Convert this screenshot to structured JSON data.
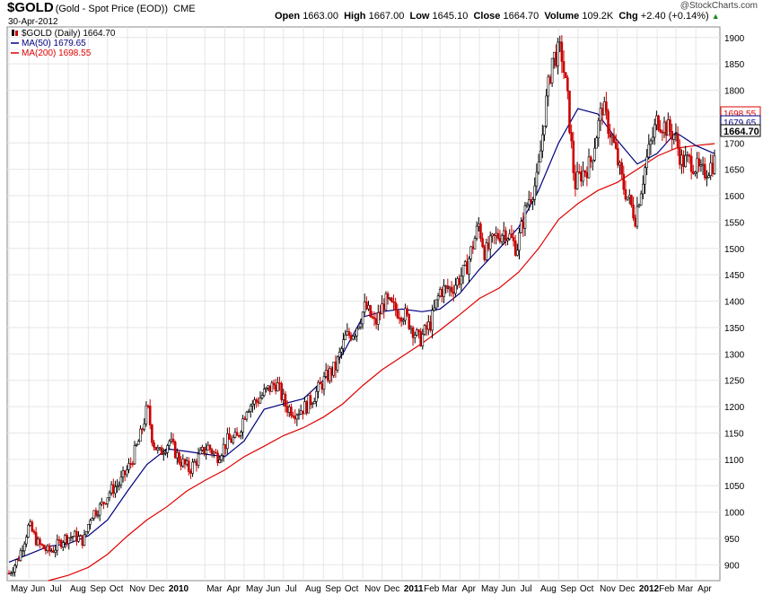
{
  "header": {
    "symbol": "$GOLD",
    "description": "(Gold - Spot Price (EOD))",
    "exchange": "CME",
    "date": "30-Apr-2012",
    "watermark": "@StockCharts.com",
    "quote": {
      "open_label": "Open",
      "open": "1663.00",
      "high_label": "High",
      "high": "1667.00",
      "low_label": "Low",
      "low": "1645.10",
      "close_label": "Close",
      "close": "1664.70",
      "volume_label": "Volume",
      "volume": "109.2K",
      "chg_label": "Chg",
      "chg": "+2.40 (+0.14%)",
      "chg_icon": "up-triangle-icon"
    }
  },
  "legend": [
    {
      "label": "$GOLD (Daily) 1664.70",
      "color": "#000000",
      "icon": "candle-icon"
    },
    {
      "label": "MA(50) 1679.65",
      "color": "#000080"
    },
    {
      "label": "MA(200) 1698.55",
      "color": "#e00000"
    }
  ],
  "price_tags": [
    {
      "label": "1698.55",
      "value": 1698.55,
      "color": "#e00000"
    },
    {
      "label": "1679.65",
      "value": 1679.65,
      "color": "#000080"
    },
    {
      "label": "1664.70",
      "value": 1664.7,
      "color": "#000000"
    }
  ],
  "chart_data": {
    "type": "line",
    "title": "$GOLD (Gold - Spot Price (EOD)) CME",
    "ylim": [
      870,
      1920
    ],
    "y_ticks": [
      900,
      950,
      1000,
      1050,
      1100,
      1150,
      1200,
      1250,
      1300,
      1350,
      1400,
      1450,
      1500,
      1550,
      1600,
      1650,
      1700,
      1750,
      1800,
      1850,
      1900
    ],
    "month_labels": [
      {
        "label": "May",
        "month": "2009-05",
        "bold": false
      },
      {
        "label": "Jun",
        "month": "2009-06",
        "bold": false
      },
      {
        "label": "Jul",
        "month": "2009-07",
        "bold": false
      },
      {
        "label": "Aug",
        "month": "2009-08",
        "bold": false
      },
      {
        "label": "Sep",
        "month": "2009-09",
        "bold": false
      },
      {
        "label": "Oct",
        "month": "2009-10",
        "bold": false
      },
      {
        "label": "Nov",
        "month": "2009-11",
        "bold": false
      },
      {
        "label": "Dec",
        "month": "2009-12",
        "bold": false
      },
      {
        "label": "2010",
        "month": "2010-01",
        "bold": true
      },
      {
        "label": "Mar",
        "month": "2010-03",
        "bold": false
      },
      {
        "label": "Apr",
        "month": "2010-04",
        "bold": false
      },
      {
        "label": "May",
        "month": "2010-05",
        "bold": false
      },
      {
        "label": "Jun",
        "month": "2010-06",
        "bold": false
      },
      {
        "label": "Jul",
        "month": "2010-07",
        "bold": false
      },
      {
        "label": "Aug",
        "month": "2010-08",
        "bold": false
      },
      {
        "label": "Sep",
        "month": "2010-09",
        "bold": false
      },
      {
        "label": "Oct",
        "month": "2010-10",
        "bold": false
      },
      {
        "label": "Nov",
        "month": "2010-11",
        "bold": false
      },
      {
        "label": "Dec",
        "month": "2010-12",
        "bold": false
      },
      {
        "label": "2011",
        "month": "2011-01",
        "bold": true
      },
      {
        "label": "Feb",
        "month": "2011-02",
        "bold": false
      },
      {
        "label": "Mar",
        "month": "2011-03",
        "bold": false
      },
      {
        "label": "Apr",
        "month": "2011-04",
        "bold": false
      },
      {
        "label": "May",
        "month": "2011-05",
        "bold": false
      },
      {
        "label": "Jun",
        "month": "2011-06",
        "bold": false
      },
      {
        "label": "Jul",
        "month": "2011-07",
        "bold": false
      },
      {
        "label": "Aug",
        "month": "2011-08",
        "bold": false
      },
      {
        "label": "Sep",
        "month": "2011-09",
        "bold": false
      },
      {
        "label": "Oct",
        "month": "2011-10",
        "bold": false
      },
      {
        "label": "Nov",
        "month": "2011-11",
        "bold": false
      },
      {
        "label": "Dec",
        "month": "2011-12",
        "bold": false
      },
      {
        "label": "2012",
        "month": "2012-01",
        "bold": true
      },
      {
        "label": "Feb",
        "month": "2012-02",
        "bold": false
      },
      {
        "label": "Mar",
        "month": "2012-03",
        "bold": false
      },
      {
        "label": "Apr",
        "month": "2012-04",
        "bold": false
      }
    ],
    "grid": true,
    "legend_position": "top-left",
    "series": [
      {
        "name": "$GOLD (Daily)",
        "color": "#000000",
        "style": "candlestick",
        "x": [
          "2009-05-01",
          "2009-05-15",
          "2009-06-01",
          "2009-06-15",
          "2009-07-01",
          "2009-07-10",
          "2009-07-25",
          "2009-08-10",
          "2009-08-25",
          "2009-09-05",
          "2009-09-20",
          "2009-10-05",
          "2009-10-20",
          "2009-11-05",
          "2009-11-20",
          "2009-12-02",
          "2009-12-10",
          "2009-12-20",
          "2010-01-05",
          "2010-01-20",
          "2010-02-05",
          "2010-02-20",
          "2010-03-05",
          "2010-03-20",
          "2010-04-05",
          "2010-04-20",
          "2010-05-05",
          "2010-05-20",
          "2010-06-05",
          "2010-06-20",
          "2010-07-05",
          "2010-07-20",
          "2010-08-05",
          "2010-08-20",
          "2010-09-05",
          "2010-09-20",
          "2010-10-05",
          "2010-10-20",
          "2010-11-05",
          "2010-11-20",
          "2010-12-05",
          "2010-12-20",
          "2011-01-05",
          "2011-01-28",
          "2011-02-15",
          "2011-03-01",
          "2011-03-20",
          "2011-04-10",
          "2011-04-30",
          "2011-05-10",
          "2011-05-25",
          "2011-06-10",
          "2011-06-28",
          "2011-07-15",
          "2011-07-30",
          "2011-08-10",
          "2011-08-22",
          "2011-09-05",
          "2011-09-15",
          "2011-09-26",
          "2011-10-05",
          "2011-10-20",
          "2011-11-08",
          "2011-11-25",
          "2011-12-10",
          "2011-12-29",
          "2012-01-15",
          "2012-02-01",
          "2012-02-28",
          "2012-03-10",
          "2012-03-25",
          "2012-04-10",
          "2012-04-30"
        ],
        "values": [
          884,
          910,
          975,
          940,
          925,
          930,
          950,
          955,
          945,
          995,
          1010,
          1040,
          1055,
          1090,
          1140,
          1200,
          1135,
          1110,
          1135,
          1100,
          1080,
          1105,
          1125,
          1105,
          1135,
          1140,
          1200,
          1210,
          1230,
          1245,
          1200,
          1190,
          1200,
          1225,
          1255,
          1275,
          1330,
          1345,
          1390,
          1355,
          1400,
          1385,
          1375,
          1325,
          1360,
          1420,
          1425,
          1460,
          1545,
          1490,
          1520,
          1535,
          1500,
          1590,
          1630,
          1750,
          1860,
          1875,
          1780,
          1620,
          1640,
          1660,
          1770,
          1700,
          1620,
          1560,
          1665,
          1745,
          1715,
          1665,
          1665,
          1640,
          1664.7
        ]
      },
      {
        "name": "MA(50)",
        "color": "#000080",
        "style": "line",
        "x": [
          "2009-05-01",
          "2009-06-01",
          "2009-07-01",
          "2009-08-01",
          "2009-09-01",
          "2009-10-01",
          "2009-11-01",
          "2009-12-01",
          "2010-01-01",
          "2010-02-01",
          "2010-03-01",
          "2010-04-01",
          "2010-05-01",
          "2010-06-01",
          "2010-07-01",
          "2010-08-01",
          "2010-09-01",
          "2010-10-01",
          "2010-11-01",
          "2010-12-01",
          "2011-01-01",
          "2011-02-01",
          "2011-03-01",
          "2011-04-01",
          "2011-05-01",
          "2011-06-01",
          "2011-07-01",
          "2011-08-01",
          "2011-09-01",
          "2011-10-01",
          "2011-11-01",
          "2011-12-01",
          "2012-01-01",
          "2012-02-01",
          "2012-03-01",
          "2012-04-01",
          "2012-04-30"
        ],
        "values": [
          905,
          920,
          935,
          940,
          955,
          985,
          1040,
          1090,
          1120,
          1115,
          1110,
          1105,
          1135,
          1195,
          1205,
          1215,
          1250,
          1300,
          1370,
          1380,
          1385,
          1380,
          1385,
          1415,
          1460,
          1500,
          1540,
          1610,
          1700,
          1765,
          1755,
          1705,
          1660,
          1680,
          1720,
          1695,
          1679.65
        ]
      },
      {
        "name": "MA(200)",
        "color": "#e00000",
        "style": "line",
        "x": [
          "2009-07-01",
          "2009-08-01",
          "2009-09-01",
          "2009-10-01",
          "2009-11-01",
          "2009-12-01",
          "2010-01-01",
          "2010-02-01",
          "2010-03-01",
          "2010-04-01",
          "2010-05-01",
          "2010-06-01",
          "2010-07-01",
          "2010-08-01",
          "2010-09-01",
          "2010-10-01",
          "2010-11-01",
          "2010-12-01",
          "2011-01-01",
          "2011-02-01",
          "2011-03-01",
          "2011-04-01",
          "2011-05-01",
          "2011-06-01",
          "2011-07-01",
          "2011-08-01",
          "2011-09-01",
          "2011-10-01",
          "2011-11-01",
          "2011-12-01",
          "2012-01-01",
          "2012-02-01",
          "2012-03-01",
          "2012-04-01",
          "2012-04-30"
        ],
        "values": [
          870,
          880,
          895,
          920,
          955,
          985,
          1010,
          1040,
          1060,
          1080,
          1105,
          1125,
          1145,
          1160,
          1180,
          1205,
          1240,
          1270,
          1295,
          1320,
          1345,
          1375,
          1405,
          1425,
          1455,
          1500,
          1555,
          1585,
          1610,
          1625,
          1650,
          1675,
          1690,
          1695,
          1698.55
        ]
      }
    ]
  }
}
